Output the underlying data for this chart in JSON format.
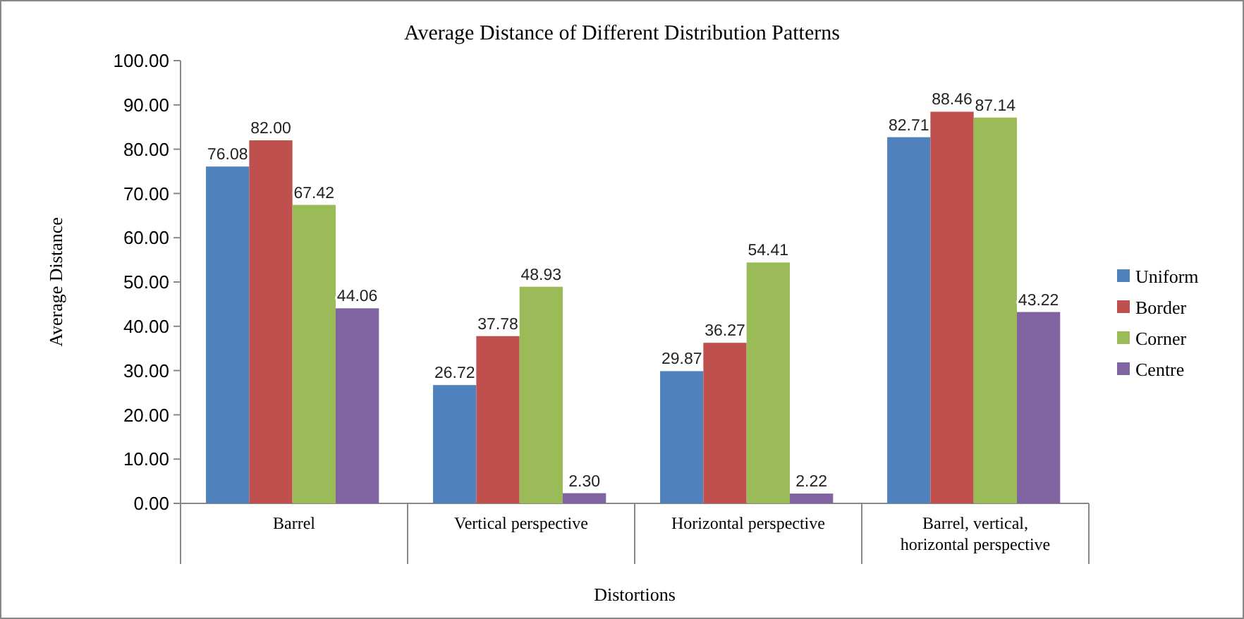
{
  "chart_data": {
    "type": "bar",
    "title": "Average Distance of Different Distribution Patterns",
    "xlabel": "Distortions",
    "ylabel": "Average Distance",
    "categories": [
      "Barrel",
      "Vertical perspective",
      "Horizontal perspective",
      "Barrel, vertical, horizontal perspective"
    ],
    "series": [
      {
        "name": "Uniform",
        "color": "#4f81bd",
        "values": [
          76.08,
          26.72,
          29.87,
          82.71
        ]
      },
      {
        "name": "Border",
        "color": "#c0504d",
        "values": [
          82.0,
          37.78,
          36.27,
          88.46
        ]
      },
      {
        "name": "Corner",
        "color": "#9bbb59",
        "values": [
          67.42,
          48.93,
          54.41,
          87.14
        ]
      },
      {
        "name": "Centre",
        "color": "#8064a2",
        "values": [
          44.06,
          2.3,
          2.22,
          43.22
        ]
      }
    ],
    "ylim": [
      0,
      100
    ],
    "yticks": [
      {
        "value": 0,
        "label": "0.00"
      },
      {
        "value": 10,
        "label": "10.00"
      },
      {
        "value": 20,
        "label": "20.00"
      },
      {
        "value": 30,
        "label": "30.00"
      },
      {
        "value": 40,
        "label": "40.00"
      },
      {
        "value": 50,
        "label": "50.00"
      },
      {
        "value": 60,
        "label": "60.00"
      },
      {
        "value": 70,
        "label": "70.00"
      },
      {
        "value": 80,
        "label": "80.00"
      },
      {
        "value": 90,
        "label": "90.00"
      },
      {
        "value": 100,
        "label": "100.00"
      }
    ],
    "value_labels": [
      [
        "76.08",
        "26.72",
        "29.87",
        "82.71"
      ],
      [
        "82.00",
        "37.78",
        "36.27",
        "88.46"
      ],
      [
        "67.42",
        "48.93",
        "54.41",
        "87.14"
      ],
      [
        "44.06",
        "2.30",
        "2.22",
        "43.22"
      ]
    ],
    "grid": false,
    "legend": "right"
  }
}
